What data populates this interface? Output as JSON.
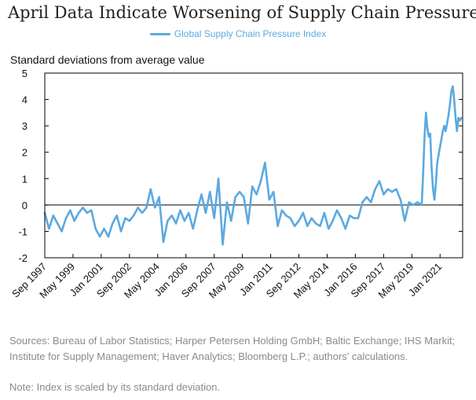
{
  "chart_data": {
    "type": "line",
    "title": "April Data Indicate Worsening of Supply Chain Pressures",
    "ylabel": "Standard deviations from average value",
    "xlabel": "",
    "ylim": [
      -2,
      5
    ],
    "xlim": [
      "1997-09",
      "2022-05"
    ],
    "grid": false,
    "legend_position": "top-center",
    "zero_line": true,
    "yticks": [
      "5",
      "4",
      "3",
      "2",
      "1",
      "0",
      "-1",
      "-2"
    ],
    "xticks": [
      "Sep 1997",
      "May 1999",
      "Jan 2001",
      "Sep 2002",
      "May 2004",
      "Jan 2006",
      "Sep 2007",
      "May 2009",
      "Jan 2011",
      "Sep 2012",
      "May 2014",
      "Jan 2016",
      "Sep 2017",
      "May 2019",
      "Jan 2021"
    ],
    "series": [
      {
        "name": "Global Supply Chain Pressure Index",
        "color": "#5ba9e0",
        "x": [
          "1997-09",
          "1997-12",
          "1998-03",
          "1998-06",
          "1998-09",
          "1998-12",
          "1999-03",
          "1999-06",
          "1999-09",
          "1999-12",
          "2000-03",
          "2000-06",
          "2000-09",
          "2000-12",
          "2001-03",
          "2001-06",
          "2001-09",
          "2001-12",
          "2002-03",
          "2002-06",
          "2002-09",
          "2002-12",
          "2003-03",
          "2003-06",
          "2003-09",
          "2003-12",
          "2004-03",
          "2004-06",
          "2004-09",
          "2004-12",
          "2005-03",
          "2005-06",
          "2005-09",
          "2005-12",
          "2006-03",
          "2006-06",
          "2006-09",
          "2006-12",
          "2007-03",
          "2007-06",
          "2007-09",
          "2007-12",
          "2008-03",
          "2008-06",
          "2008-09",
          "2008-12",
          "2009-03",
          "2009-06",
          "2009-09",
          "2009-12",
          "2010-03",
          "2010-06",
          "2010-09",
          "2010-12",
          "2011-03",
          "2011-06",
          "2011-09",
          "2011-12",
          "2012-03",
          "2012-06",
          "2012-09",
          "2012-12",
          "2013-03",
          "2013-06",
          "2013-09",
          "2013-12",
          "2014-03",
          "2014-06",
          "2014-09",
          "2014-12",
          "2015-03",
          "2015-06",
          "2015-09",
          "2015-12",
          "2016-03",
          "2016-06",
          "2016-09",
          "2016-12",
          "2017-03",
          "2017-06",
          "2017-09",
          "2017-12",
          "2018-03",
          "2018-06",
          "2018-09",
          "2018-12",
          "2019-03",
          "2019-06",
          "2019-09",
          "2019-12",
          "2020-01",
          "2020-02",
          "2020-03",
          "2020-04",
          "2020-05",
          "2020-06",
          "2020-07",
          "2020-08",
          "2020-09",
          "2020-10",
          "2020-11",
          "2020-12",
          "2021-01",
          "2021-02",
          "2021-03",
          "2021-04",
          "2021-05",
          "2021-06",
          "2021-07",
          "2021-08",
          "2021-09",
          "2021-10",
          "2021-11",
          "2021-12",
          "2022-01",
          "2022-02",
          "2022-03",
          "2022-04"
        ],
        "values": [
          -0.3,
          -0.9,
          -0.4,
          -0.7,
          -1.0,
          -0.5,
          -0.2,
          -0.6,
          -0.3,
          -0.1,
          -0.3,
          -0.2,
          -0.9,
          -1.2,
          -0.9,
          -1.2,
          -0.7,
          -0.4,
          -1.0,
          -0.5,
          -0.6,
          -0.4,
          -0.1,
          -0.3,
          -0.1,
          0.6,
          -0.1,
          0.3,
          -1.4,
          -0.6,
          -0.4,
          -0.7,
          -0.2,
          -0.6,
          -0.3,
          -0.9,
          -0.2,
          0.4,
          -0.3,
          0.5,
          -0.5,
          1.0,
          -1.5,
          0.1,
          -0.6,
          0.3,
          0.5,
          0.3,
          -0.7,
          0.7,
          0.4,
          0.9,
          1.6,
          0.2,
          0.5,
          -0.8,
          -0.2,
          -0.4,
          -0.5,
          -0.8,
          -0.6,
          -0.3,
          -0.8,
          -0.5,
          -0.7,
          -0.8,
          -0.3,
          -0.9,
          -0.6,
          -0.2,
          -0.5,
          -0.9,
          -0.4,
          -0.5,
          -0.5,
          0.1,
          0.3,
          0.1,
          0.6,
          0.9,
          0.4,
          0.6,
          0.5,
          0.6,
          0.2,
          -0.6,
          0.1,
          0.0,
          0.1,
          0.0,
          1.2,
          2.6,
          3.5,
          2.9,
          2.6,
          2.7,
          1.4,
          0.6,
          0.2,
          0.8,
          1.6,
          1.9,
          2.2,
          2.5,
          2.8,
          3.0,
          2.8,
          3.1,
          3.4,
          3.8,
          4.3,
          4.5,
          4.0,
          3.3,
          2.8,
          3.3,
          3.2,
          3.3
        ]
      }
    ]
  },
  "sources_text": "Sources: Bureau of Labor Statistics; Harper Petersen Holding GmbH; Baltic Exchange; IHS Markit; Institute for Supply Management; Haver Analytics; Bloomberg L.P.; authors’ calculations.",
  "note_text": "Note: Index is scaled by its standard deviation."
}
